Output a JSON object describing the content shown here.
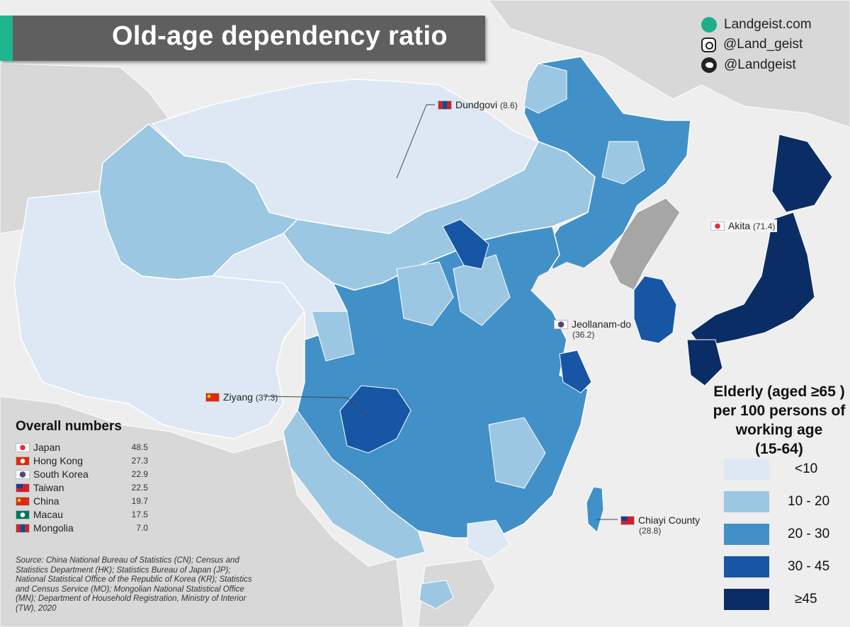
{
  "title": "Old-age dependency ratio",
  "social": [
    {
      "icon": "globe-icon",
      "label": "Landgeist.com"
    },
    {
      "icon": "instagram-icon",
      "label": "@Land_geist"
    },
    {
      "icon": "twitter-icon",
      "label": "@Landgeist"
    }
  ],
  "callouts": {
    "dundgovi": {
      "name": "Dundgovi",
      "value": "(8.6)",
      "flag": "mongolia-flag-icon"
    },
    "akita": {
      "name": "Akita",
      "value": "(71.4)",
      "flag": "japan-flag-icon"
    },
    "jeollanam": {
      "name": "Jeollanam-do",
      "value": "(36.2)",
      "flag": "south-korea-flag-icon"
    },
    "ziyang": {
      "name": "Ziyang",
      "value": "(37.3)",
      "flag": "china-flag-icon"
    },
    "chiayi": {
      "name": "Chiayi County",
      "value": "(28.8)",
      "flag": "taiwan-flag-icon"
    }
  },
  "legend": {
    "title_lines": [
      "Elderly (aged ≥65 )",
      "per 100 persons of",
      "working age",
      "(15-64)"
    ],
    "classes": [
      {
        "label": "<10",
        "color": "#dde8f4"
      },
      {
        "label": "10 - 20",
        "color": "#9cc7e2"
      },
      {
        "label": "20 - 30",
        "color": "#4290c8"
      },
      {
        "label": "30 - 45",
        "color": "#1656a5"
      },
      {
        "label": "≥45",
        "color": "#0b2d66"
      }
    ]
  },
  "overall": {
    "heading": "Overall numbers",
    "rows": [
      {
        "name": "Japan",
        "value": "48.5",
        "flag": "japan-flag-icon"
      },
      {
        "name": "Hong Kong",
        "value": "27.3",
        "flag": "hong-kong-flag-icon"
      },
      {
        "name": "South Korea",
        "value": "22.9",
        "flag": "south-korea-flag-icon"
      },
      {
        "name": "Taiwan",
        "value": "22.5",
        "flag": "taiwan-flag-icon"
      },
      {
        "name": "China",
        "value": "19.7",
        "flag": "china-flag-icon"
      },
      {
        "name": "Macau",
        "value": "17.5",
        "flag": "macau-flag-icon"
      },
      {
        "name": "Mongolia",
        "value": "7.0",
        "flag": "mongolia-flag-icon"
      }
    ]
  },
  "source": "Source: China National Bureau of Statistics (CN); Census and Statistics Department (HK); Statistics Bureau of Japan (JP); National Statistical Office of the Republic of Korea (KR); Statistics and Census Service (MO); Mongolian National Statistical Office (MN); Department of Household Registration, Ministry of Interior (TW), 2020",
  "colors": {
    "background": "#eeeeee",
    "neighbor_land": "#d8d8d8",
    "north_korea": "#a6a6a6",
    "title_bar": "#5f5f5f",
    "accent": "#1fb58f"
  }
}
